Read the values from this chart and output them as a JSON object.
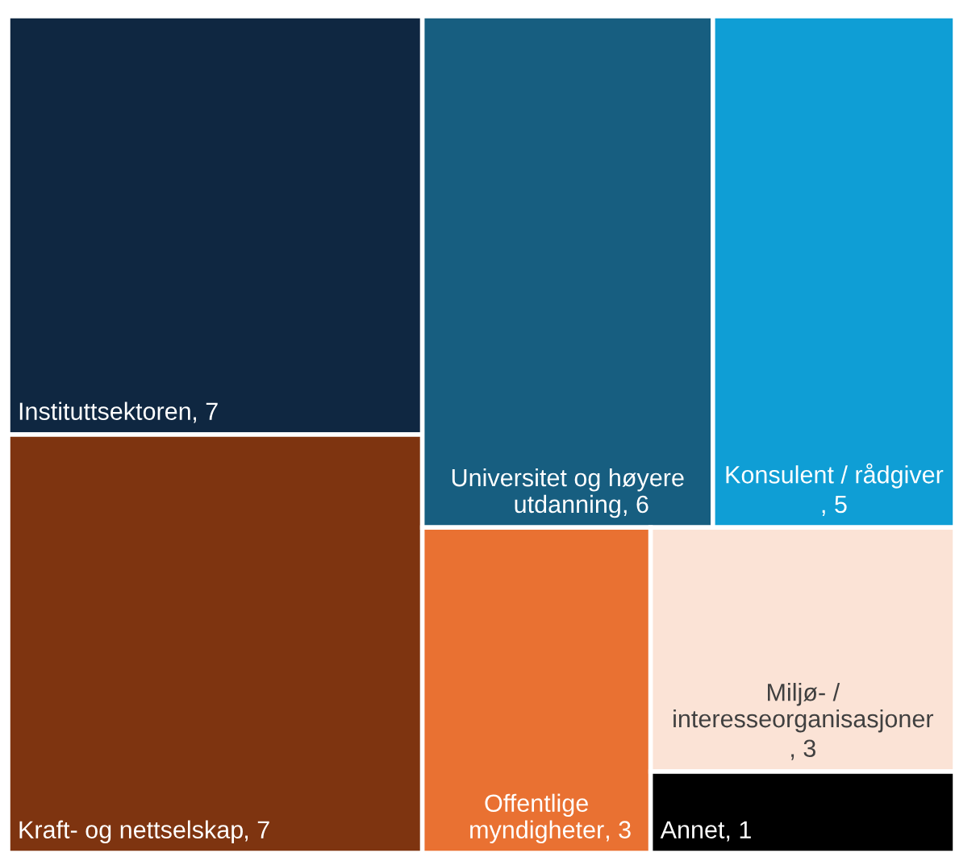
{
  "chart_data": {
    "type": "other",
    "categories": [
      "Instituttsektoren",
      "Kraft- og nettselskap",
      "Universitet og høyere utdanning",
      "Konsulent / rådgiver",
      "Offentlige myndigheter",
      "Miljø- / interesseorganisasjoner",
      "Annet"
    ],
    "values": [
      7,
      7,
      6,
      5,
      3,
      3,
      1
    ],
    "value_labels": [
      ", 7",
      ", 7",
      ", 6",
      ", 5",
      ", 3",
      ", 3",
      ", 1"
    ],
    "colors": [
      "#0f2741",
      "#7e3410",
      "#175e80",
      "#0f9ed5",
      "#e97132",
      "#fbe3d6",
      "#000000"
    ]
  }
}
